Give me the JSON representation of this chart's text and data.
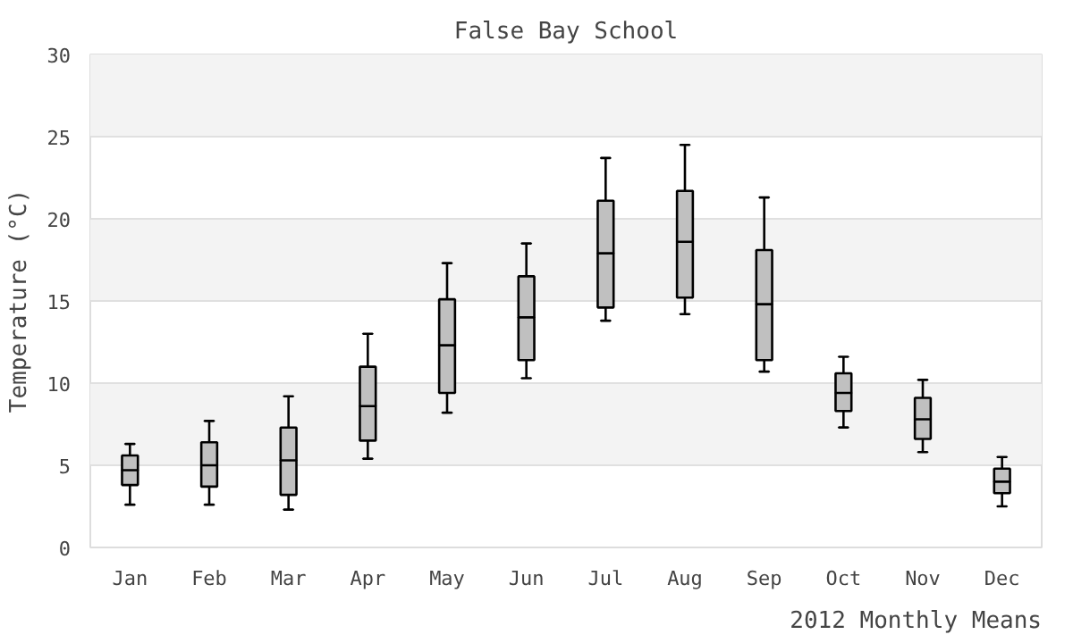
{
  "chart_data": {
    "type": "box",
    "title": "False Bay School",
    "xlabel": "2012 Monthly Means",
    "ylabel": "Temperature (°C)",
    "categories": [
      "Jan",
      "Feb",
      "Mar",
      "Apr",
      "May",
      "Jun",
      "Jul",
      "Aug",
      "Sep",
      "Oct",
      "Nov",
      "Dec"
    ],
    "color": "#c0c0c0",
    "boxes": [
      {
        "low": 2.6,
        "q1": 3.8,
        "median": 4.7,
        "q3": 5.6,
        "high": 6.3
      },
      {
        "low": 2.6,
        "q1": 3.7,
        "median": 5.0,
        "q3": 6.4,
        "high": 7.7
      },
      {
        "low": 2.3,
        "q1": 3.2,
        "median": 5.3,
        "q3": 7.3,
        "high": 9.2
      },
      {
        "low": 5.4,
        "q1": 6.5,
        "median": 8.6,
        "q3": 11.0,
        "high": 13.0
      },
      {
        "low": 8.2,
        "q1": 9.4,
        "median": 12.3,
        "q3": 15.1,
        "high": 17.3
      },
      {
        "low": 10.3,
        "q1": 11.4,
        "median": 14.0,
        "q3": 16.5,
        "high": 18.5
      },
      {
        "low": 13.8,
        "q1": 14.6,
        "median": 17.9,
        "q3": 21.1,
        "high": 23.7
      },
      {
        "low": 14.2,
        "q1": 15.2,
        "median": 18.6,
        "q3": 21.7,
        "high": 24.5
      },
      {
        "low": 10.7,
        "q1": 11.4,
        "median": 14.8,
        "q3": 18.1,
        "high": 21.3
      },
      {
        "low": 7.3,
        "q1": 8.3,
        "median": 9.4,
        "q3": 10.6,
        "high": 11.6
      },
      {
        "low": 5.8,
        "q1": 6.6,
        "median": 7.8,
        "q3": 9.1,
        "high": 10.2
      },
      {
        "low": 2.5,
        "q1": 3.3,
        "median": 4.0,
        "q3": 4.8,
        "high": 5.5
      }
    ],
    "ylim": [
      0,
      30
    ],
    "yticks": [
      0,
      5,
      10,
      15,
      20,
      25,
      30
    ],
    "grid": "y"
  }
}
